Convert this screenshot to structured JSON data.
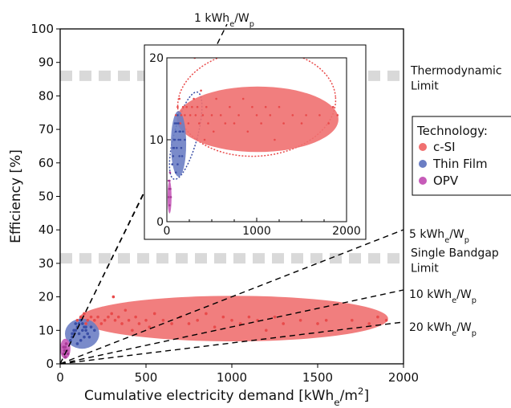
{
  "chart_data": {
    "type": "scatter",
    "xlabel": "Cumulative electricity demand [kWh",
    "xlabel_sub": "e",
    "xlabel_tail": "/m",
    "xlabel_sup": "2",
    "xlabel_end": "]",
    "ylabel": "Efficiency [%]",
    "xlim": [
      0,
      2000
    ],
    "ylim": [
      0,
      100
    ],
    "xticks": [
      "0",
      "500",
      "1000",
      "1500",
      "2000"
    ],
    "yticks": [
      "0",
      "10",
      "20",
      "30",
      "40",
      "50",
      "60",
      "70",
      "80",
      "90",
      "100"
    ],
    "limits": [
      {
        "value": 86,
        "label_lines": [
          "Thermodynamic",
          "Limit"
        ],
        "color": "#d9d9d9"
      },
      {
        "value": 31.5,
        "label_lines": [
          "Single Bandgap",
          "Limit"
        ],
        "color": "#d9d9d9"
      }
    ],
    "yield_lines": [
      {
        "slope_pct_per_kwh": 1.0,
        "label": "1 kWh",
        "sub": "e",
        "tail": "/W",
        "sub2": "p"
      },
      {
        "slope_pct_per_kwh": 0.2,
        "label": "5 kWh",
        "sub": "e",
        "tail": "/W",
        "sub2": "p"
      },
      {
        "slope_pct_per_kwh": 0.1,
        "label": "10 kWh",
        "sub": "e",
        "tail": "/W",
        "sub2": "p"
      },
      {
        "slope_pct_per_kwh": 0.05,
        "label": "20 kWh",
        "sub": "e",
        "tail": "/W",
        "sub2": "p"
      }
    ],
    "legend": {
      "title": "Technology:",
      "position": "right",
      "entries": [
        {
          "name": "c-SI",
          "color": "#f07070"
        },
        {
          "name": "Thin Film",
          "color": "#6b7ec4"
        },
        {
          "name": "OPV",
          "color": "#c65bb8"
        }
      ]
    },
    "series": [
      {
        "name": "c-SI",
        "color": "#e84a4a",
        "ellipse": {
          "cx": 1010,
          "cy": 13.5,
          "rx": 900,
          "ry": 6.8
        },
        "points": [
          [
            100,
            13
          ],
          [
            120,
            14
          ],
          [
            140,
            15
          ],
          [
            150,
            12
          ],
          [
            160,
            13
          ],
          [
            180,
            14
          ],
          [
            200,
            13
          ],
          [
            220,
            14
          ],
          [
            240,
            12
          ],
          [
            260,
            13
          ],
          [
            280,
            14
          ],
          [
            300,
            15
          ],
          [
            310,
            20
          ],
          [
            320,
            13
          ],
          [
            340,
            14
          ],
          [
            360,
            12
          ],
          [
            380,
            16
          ],
          [
            400,
            13
          ],
          [
            420,
            10
          ],
          [
            440,
            14
          ],
          [
            460,
            12
          ],
          [
            500,
            13
          ],
          [
            520,
            11
          ],
          [
            550,
            15
          ],
          [
            600,
            13
          ],
          [
            650,
            12
          ],
          [
            700,
            14
          ],
          [
            750,
            12
          ],
          [
            800,
            13
          ],
          [
            850,
            15
          ],
          [
            900,
            11
          ],
          [
            950,
            14
          ],
          [
            1000,
            13
          ],
          [
            1050,
            12
          ],
          [
            1100,
            14
          ],
          [
            1150,
            13
          ],
          [
            1200,
            10
          ],
          [
            1250,
            14
          ],
          [
            1300,
            12
          ],
          [
            1400,
            13
          ],
          [
            1500,
            12
          ],
          [
            1550,
            13
          ],
          [
            1700,
            13
          ],
          [
            1800,
            12
          ],
          [
            1850,
            14
          ],
          [
            1900,
            13
          ]
        ]
      },
      {
        "name": "Thin Film",
        "color": "#3a4ea6",
        "ellipse": {
          "cx": 128,
          "cy": 9,
          "rx": 100,
          "ry": 4.5
        },
        "points": [
          [
            60,
            7
          ],
          [
            70,
            8
          ],
          [
            80,
            9
          ],
          [
            90,
            10
          ],
          [
            100,
            11
          ],
          [
            110,
            12
          ],
          [
            120,
            13
          ],
          [
            130,
            12
          ],
          [
            140,
            11
          ],
          [
            150,
            10
          ],
          [
            160,
            9
          ],
          [
            170,
            8
          ],
          [
            100,
            6
          ],
          [
            120,
            7
          ],
          [
            140,
            8
          ],
          [
            110,
            9
          ],
          [
            130,
            10
          ],
          [
            150,
            11
          ],
          [
            90,
            12
          ],
          [
            80,
            10
          ],
          [
            70,
            9
          ],
          [
            200,
            10
          ],
          [
            180,
            11
          ]
        ]
      },
      {
        "name": "OPV",
        "color": "#a83a98",
        "ellipse": {
          "cx": 30,
          "cy": 4.5,
          "rx": 30,
          "ry": 3
        },
        "points": [
          [
            20,
            3
          ],
          [
            25,
            4
          ],
          [
            30,
            5
          ],
          [
            35,
            6
          ],
          [
            40,
            4
          ],
          [
            45,
            3
          ],
          [
            30,
            2
          ],
          [
            20,
            5
          ]
        ]
      }
    ],
    "inset": {
      "xlim": [
        0,
        2000
      ],
      "ylim": [
        0,
        20
      ],
      "xticks": [
        "0",
        "1000",
        "2000"
      ],
      "yticks": [
        "0",
        "10",
        "20"
      ],
      "ellipses": [
        {
          "series": "c-SI",
          "cx": 1010,
          "cy": 12.5,
          "rx": 900,
          "ry": 4.0
        },
        {
          "series": "Thin Film",
          "cx": 130,
          "cy": 9.5,
          "rx": 85,
          "ry": 4.0
        },
        {
          "series": "OPV",
          "cx": 30,
          "cy": 3,
          "rx": 22,
          "ry": 2
        }
      ]
    }
  }
}
